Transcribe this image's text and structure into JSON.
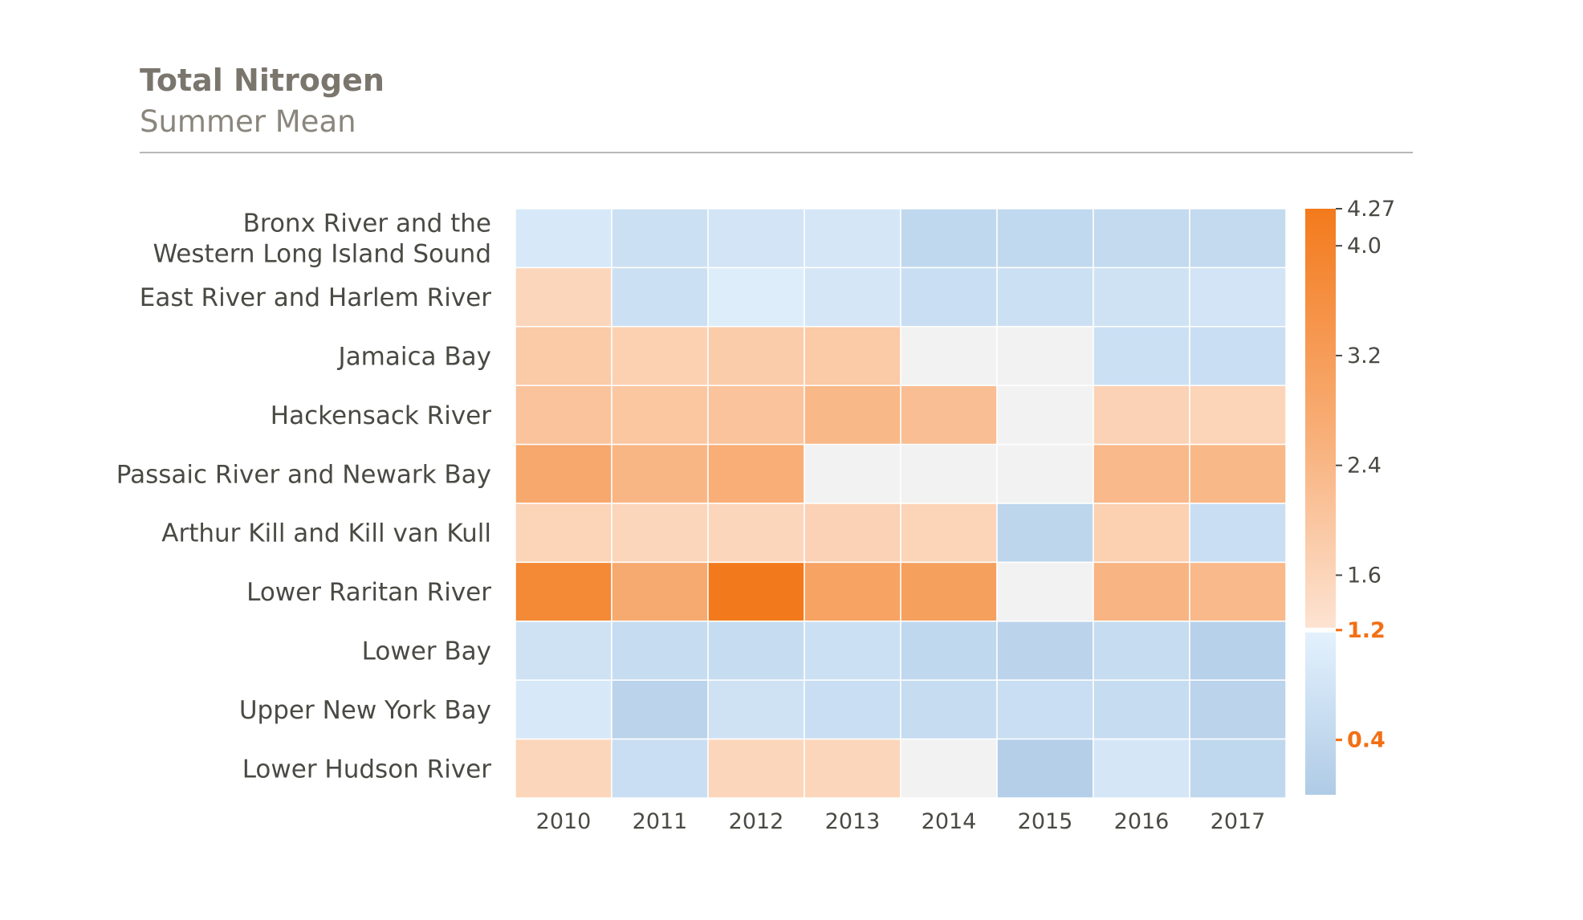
{
  "header": {
    "title": "Total Nitrogen",
    "subtitle": "Summer Mean"
  },
  "colors": {
    "orange_max": "#f37a1c",
    "orange_light": "#fde3d2",
    "neutral_gray": "#f2f2f2",
    "blue_light": "#dcecfb",
    "blue_dark": "#afcbe6",
    "highlight_tick": "#f36f13",
    "grid_line": "#ffffff"
  },
  "chart_data": {
    "type": "heatmap",
    "title": "Total Nitrogen",
    "subtitle": "Summer Mean",
    "x": [
      "2010",
      "2011",
      "2012",
      "2013",
      "2014",
      "2015",
      "2016",
      "2017"
    ],
    "y": [
      [
        "Bronx River and the",
        "Western Long Island Sound"
      ],
      [
        "East River and Harlem River"
      ],
      [
        "Jamaica Bay"
      ],
      [
        "Hackensack River"
      ],
      [
        "Passaic River and Newark Bay"
      ],
      [
        "Arthur Kill and Kill van Kull"
      ],
      [
        "Lower Raritan River"
      ],
      [
        "Lower Bay"
      ],
      [
        "Upper New York Bay"
      ],
      [
        "Lower Hudson River"
      ]
    ],
    "values": [
      [
        1.0,
        0.8,
        0.9,
        0.95,
        0.6,
        0.62,
        0.65,
        0.65
      ],
      [
        1.6,
        0.8,
        1.1,
        0.95,
        0.75,
        0.8,
        0.85,
        0.9
      ],
      [
        1.95,
        1.75,
        1.9,
        1.95,
        null,
        null,
        0.8,
        0.75
      ],
      [
        2.15,
        2.05,
        2.15,
        2.5,
        2.3,
        null,
        1.7,
        1.65
      ],
      [
        2.95,
        2.55,
        2.8,
        null,
        null,
        null,
        2.45,
        2.5
      ],
      [
        1.65,
        1.6,
        1.6,
        1.7,
        1.65,
        0.55,
        1.75,
        0.75
      ],
      [
        3.85,
        2.9,
        4.27,
        3.1,
        3.2,
        null,
        2.6,
        2.45
      ],
      [
        0.85,
        0.7,
        0.7,
        0.8,
        0.6,
        0.5,
        0.7,
        0.45
      ],
      [
        1.0,
        0.5,
        0.85,
        0.75,
        0.7,
        0.75,
        0.7,
        0.5
      ],
      [
        1.6,
        0.75,
        1.6,
        1.6,
        null,
        0.4,
        0.95,
        0.6
      ]
    ],
    "colorbar": {
      "min": 0.0,
      "max": 4.27,
      "threshold": 1.2,
      "ticks": [
        {
          "value": 4.27,
          "label": "4.27",
          "highlight": false
        },
        {
          "value": 4.0,
          "label": "4.0",
          "highlight": false
        },
        {
          "value": 3.2,
          "label": "3.2",
          "highlight": false
        },
        {
          "value": 2.4,
          "label": "2.4",
          "highlight": false
        },
        {
          "value": 1.6,
          "label": "1.6",
          "highlight": false
        },
        {
          "value": 1.2,
          "label": "1.2",
          "highlight": true
        },
        {
          "value": 0.4,
          "label": "0.4",
          "highlight": true
        }
      ]
    },
    "missing_color": "#f2f2f2",
    "legend_position": "right"
  }
}
